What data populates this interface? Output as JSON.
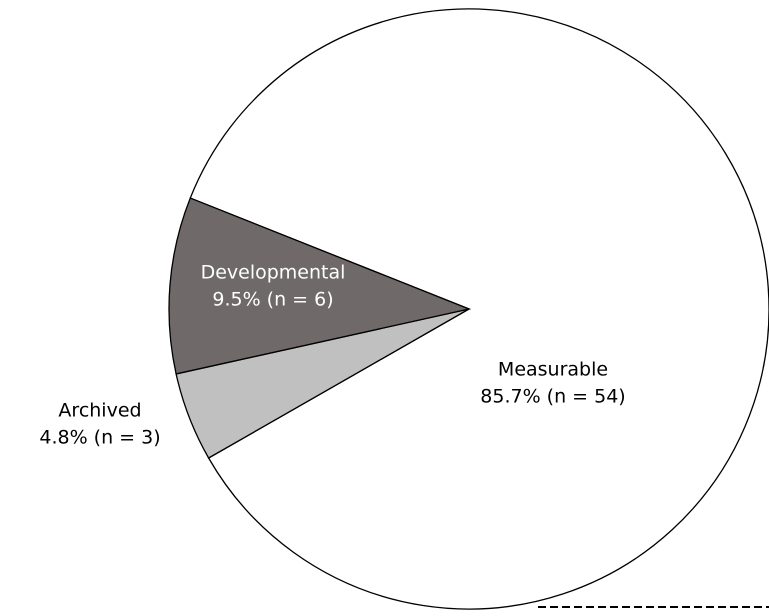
{
  "chart_data": {
    "type": "pie",
    "categories": [
      "Measurable",
      "Archived",
      "Developmental"
    ],
    "values": [
      85.7,
      4.8,
      9.5
    ],
    "value_labels": [
      "85.7% (n = 54)",
      "4.8% (n = 3)",
      "9.5% (n = 6)"
    ],
    "colors": [
      "#ffffff",
      "#c0c0c0",
      "#6f6a69"
    ]
  }
}
